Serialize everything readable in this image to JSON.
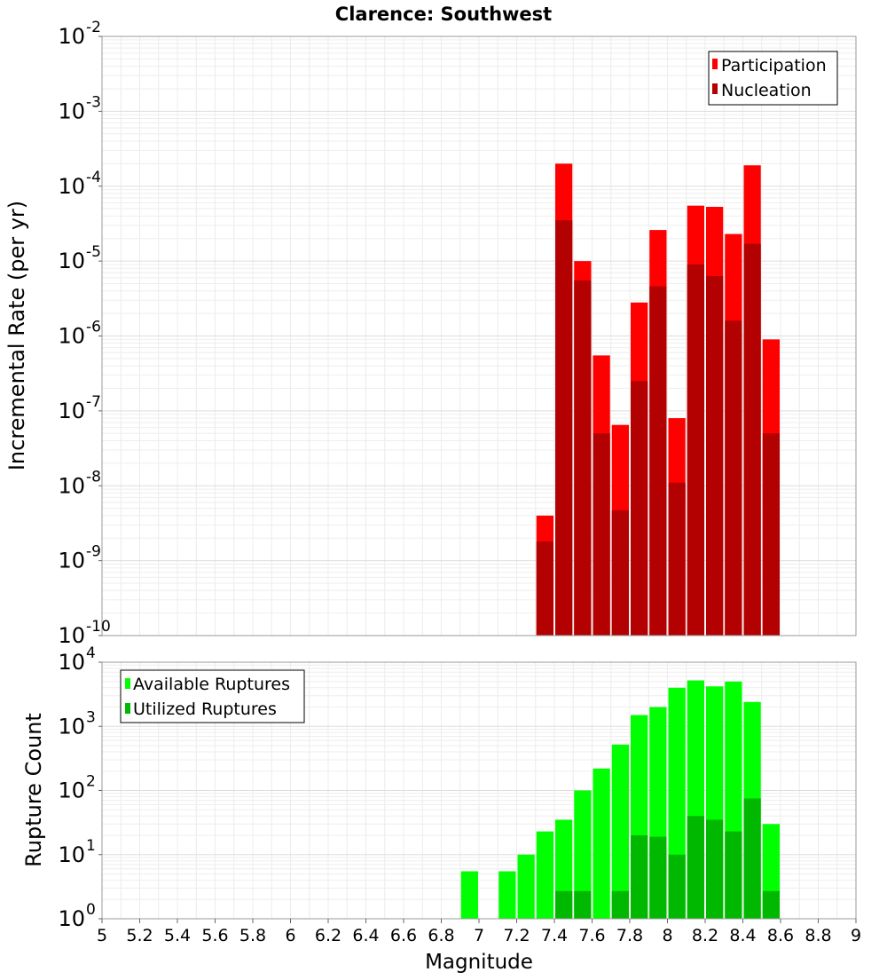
{
  "chart_data": [
    {
      "type": "bar",
      "title": "Clarence: Southwest",
      "xlabel": "",
      "ylabel": "Incremental Rate (per yr)",
      "yscale": "log",
      "ylim_exp": [
        -10,
        -2
      ],
      "xlim": [
        5,
        9
      ],
      "bar_width": 0.1,
      "legend_position": "top-right",
      "series": [
        {
          "name": "Participation",
          "color": "#ff0000",
          "x": [
            7.35,
            7.45,
            7.55,
            7.65,
            7.75,
            7.85,
            7.95,
            8.05,
            8.15,
            8.25,
            8.35,
            8.45,
            8.55
          ],
          "values": [
            4e-09,
            0.0002,
            1e-05,
            5.5e-07,
            6.5e-08,
            2.8e-06,
            2.6e-05,
            8e-08,
            5.5e-05,
            5.3e-05,
            2.3e-05,
            0.00019,
            9e-07
          ]
        },
        {
          "name": "Nucleation",
          "color": "#b30000",
          "x": [
            7.35,
            7.45,
            7.55,
            7.65,
            7.75,
            7.85,
            7.95,
            8.05,
            8.15,
            8.25,
            8.35,
            8.45,
            8.55
          ],
          "values": [
            1.8e-09,
            3.5e-05,
            5.5e-06,
            5e-08,
            4.7e-09,
            2.5e-07,
            4.6e-06,
            1.1e-08,
            9e-06,
            6.3e-06,
            1.6e-06,
            1.7e-05,
            5e-08
          ]
        }
      ]
    },
    {
      "type": "bar",
      "title": "",
      "xlabel": "Magnitude",
      "ylabel": "Rupture Count",
      "yscale": "log",
      "ylim_exp": [
        0,
        4
      ],
      "ymin_value": 0.8,
      "xlim": [
        5,
        9
      ],
      "bar_width": 0.1,
      "legend_position": "top-left",
      "x_ticks": [
        "5",
        "5.2",
        "5.4",
        "5.6",
        "5.8",
        "6",
        "6.2",
        "6.4",
        "6.6",
        "6.8",
        "7",
        "7.2",
        "7.4",
        "7.6",
        "7.8",
        "8",
        "8.2",
        "8.4",
        "8.6",
        "8.8",
        "9"
      ],
      "series": [
        {
          "name": "Available Ruptures",
          "color": "#00ff00",
          "x": [
            6.95,
            7.15,
            7.25,
            7.35,
            7.45,
            7.55,
            7.65,
            7.75,
            7.85,
            7.95,
            8.05,
            8.15,
            8.25,
            8.35,
            8.45,
            8.55
          ],
          "values": [
            5.5,
            5.5,
            10,
            23,
            35,
            100,
            220,
            520,
            1500,
            2000,
            4000,
            5200,
            4200,
            5000,
            2400,
            30
          ]
        },
        {
          "name": "Utilized Ruptures",
          "color": "#00b800",
          "x": [
            7.35,
            7.45,
            7.55,
            7.65,
            7.75,
            7.85,
            7.95,
            8.05,
            8.15,
            8.25,
            8.35,
            8.45,
            8.55
          ],
          "values": [
            1,
            2.7,
            2.7,
            1,
            2.7,
            20,
            19,
            10,
            40,
            35,
            23,
            75,
            2.7
          ]
        }
      ]
    }
  ]
}
